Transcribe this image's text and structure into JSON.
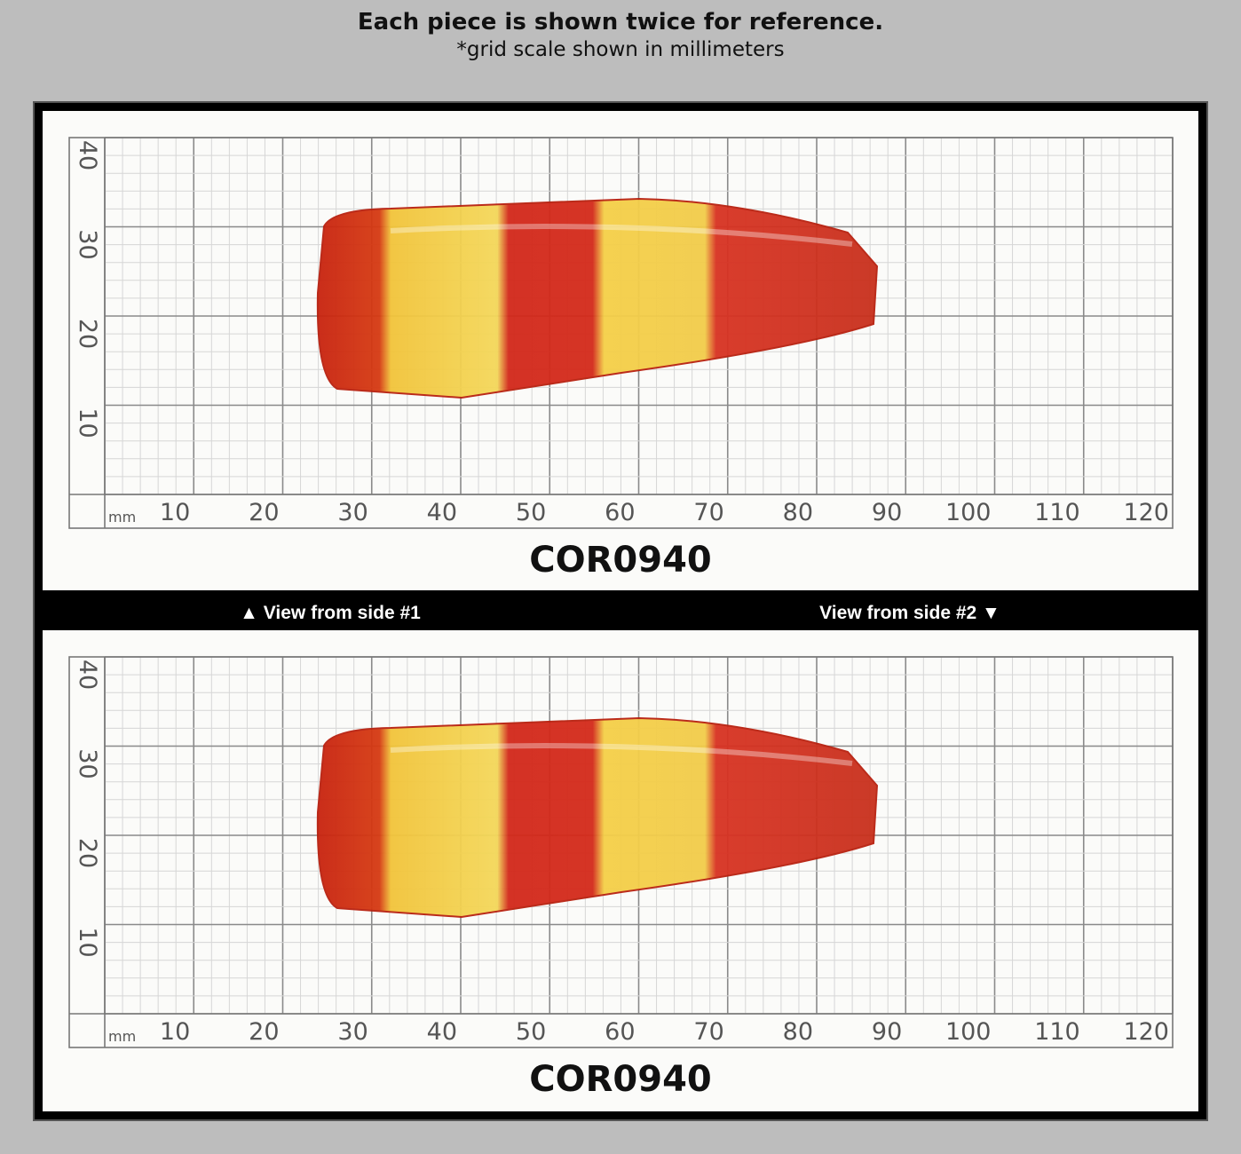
{
  "header": {
    "title": "Each piece is shown twice for reference.",
    "subtitle": "*grid scale shown in millimeters"
  },
  "panels": [
    {
      "unit": "mm",
      "x_labels": [
        10,
        20,
        30,
        40,
        50,
        60,
        70,
        80,
        90,
        100,
        110,
        120
      ],
      "y_labels": [
        40,
        30,
        20,
        10
      ],
      "code": "COR0940"
    },
    {
      "unit": "mm",
      "x_labels": [
        10,
        20,
        30,
        40,
        50,
        60,
        70,
        80,
        90,
        100,
        110,
        120
      ],
      "y_labels": [
        40,
        30,
        20,
        10
      ],
      "code": "COR0940"
    }
  ],
  "band": {
    "left": "▲ View from side #1",
    "right": "View from side #2 ▼"
  }
}
